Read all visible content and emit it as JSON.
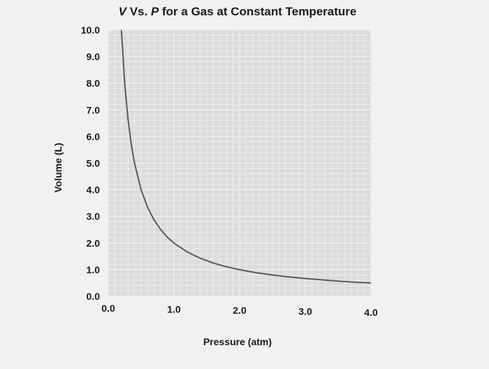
{
  "chart_data": {
    "type": "line",
    "title_italic": "V",
    "title_mid": " Vs. ",
    "title_italic2": "P",
    "title_rest": " for a Gas at Constant Temperature",
    "xlabel": "Pressure (atm)",
    "ylabel": "Volume (L)",
    "xlim": [
      0,
      4
    ],
    "ylim": [
      0,
      10
    ],
    "x_ticks": [
      "0.0",
      "1.0",
      "2.0",
      "3.0",
      "4.0"
    ],
    "y_ticks": [
      "0.0",
      "1.0",
      "2.0",
      "3.0",
      "4.0",
      "5.0",
      "6.0",
      "7.0",
      "8.0",
      "9.0",
      "10.0"
    ],
    "grid": true,
    "series": [
      {
        "x": [
          0.2,
          0.25,
          0.3,
          0.35,
          0.4,
          0.5,
          0.6,
          0.7,
          0.8,
          0.9,
          1.0,
          1.2,
          1.4,
          1.6,
          1.8,
          2.0,
          2.25,
          2.5,
          2.75,
          3.0,
          3.25,
          3.5,
          3.75,
          4.0
        ],
        "y": [
          10.0,
          8.0,
          6.67,
          5.71,
          5.0,
          4.0,
          3.33,
          2.86,
          2.5,
          2.22,
          2.0,
          1.67,
          1.43,
          1.25,
          1.11,
          1.0,
          0.89,
          0.8,
          0.73,
          0.67,
          0.62,
          0.57,
          0.53,
          0.5
        ]
      }
    ],
    "colors": {
      "background": "#f1f1ef",
      "plot_area": "#dcdcdc",
      "grid": "#eeeeee",
      "line": "#5a5a5a"
    }
  }
}
